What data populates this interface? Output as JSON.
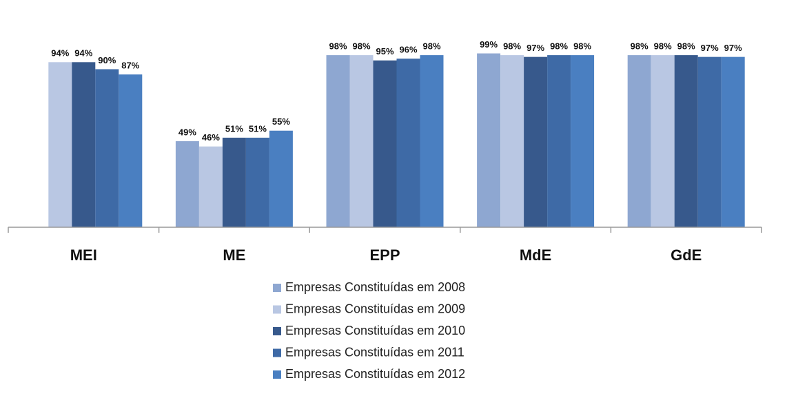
{
  "chart_data": {
    "type": "bar",
    "categories": [
      "MEI",
      "ME",
      "EPP",
      "MdE",
      "GdE"
    ],
    "series": [
      {
        "name": "Empresas Constituídas em 2008",
        "color": "#8ea7d1",
        "values": [
          null,
          49,
          98,
          99,
          98
        ],
        "value_labels": [
          null,
          "49%",
          "98%",
          "99%",
          "98%"
        ]
      },
      {
        "name": "Empresas Constituídas em 2009",
        "color": "#b9c7e3",
        "values": [
          94,
          46,
          98,
          98,
          98
        ],
        "value_labels": [
          "94%",
          "46%",
          "98%",
          "98%",
          "98%"
        ]
      },
      {
        "name": "Empresas Constituídas em 2010",
        "color": "#37598c",
        "values": [
          94,
          51,
          95,
          97,
          98
        ],
        "value_labels": [
          "94%",
          "51%",
          "95%",
          "97%",
          "98%"
        ]
      },
      {
        "name": "Empresas Constituídas em 2011",
        "color": "#3e6aa6",
        "values": [
          90,
          51,
          96,
          98,
          97
        ],
        "value_labels": [
          "90%",
          "51%",
          "96%",
          "98%",
          "97%"
        ]
      },
      {
        "name": "Empresas Constituídas em 2012",
        "color": "#4a7fc1",
        "values": [
          87,
          55,
          98,
          98,
          97
        ],
        "value_labels": [
          "87%",
          "55%",
          "98%",
          "98%",
          "97%"
        ]
      }
    ],
    "ylim": [
      0,
      100
    ]
  }
}
